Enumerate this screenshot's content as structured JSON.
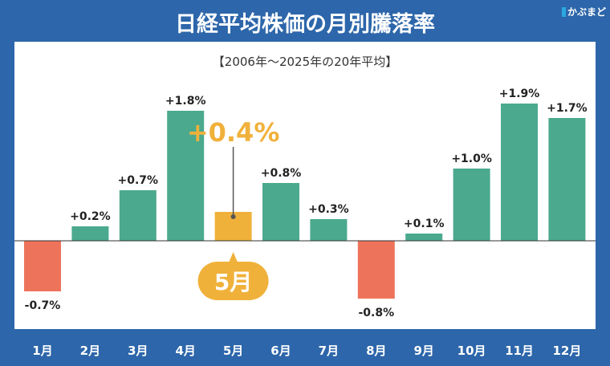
{
  "title": "日経平均株価の月別騰落率",
  "logo": "かぶまど",
  "chart_data": {
    "type": "bar",
    "subtitle": "【2006年〜2025年の20年平均】",
    "categories": [
      "1月",
      "2月",
      "3月",
      "4月",
      "5月",
      "6月",
      "7月",
      "8月",
      "9月",
      "10月",
      "11月",
      "12月"
    ],
    "values": [
      -0.7,
      0.2,
      0.7,
      1.8,
      0.4,
      0.8,
      0.3,
      -0.8,
      0.1,
      1.0,
      1.9,
      1.7
    ],
    "data_labels": [
      "-0.7%",
      "+0.2%",
      "+0.7%",
      "+1.8%",
      "+0.4%",
      "+0.8%",
      "+0.3%",
      "-0.8%",
      "+0.1%",
      "+1.0%",
      "+1.9%",
      "+1.7%"
    ],
    "highlight": {
      "category": "5月",
      "label": "+0.4%",
      "badge": "5月"
    },
    "colors": {
      "positive": "#4ba98e",
      "negative": "#ee735b",
      "highlight": "#f0b13b",
      "background": "#2d66aa"
    },
    "grid": false
  }
}
